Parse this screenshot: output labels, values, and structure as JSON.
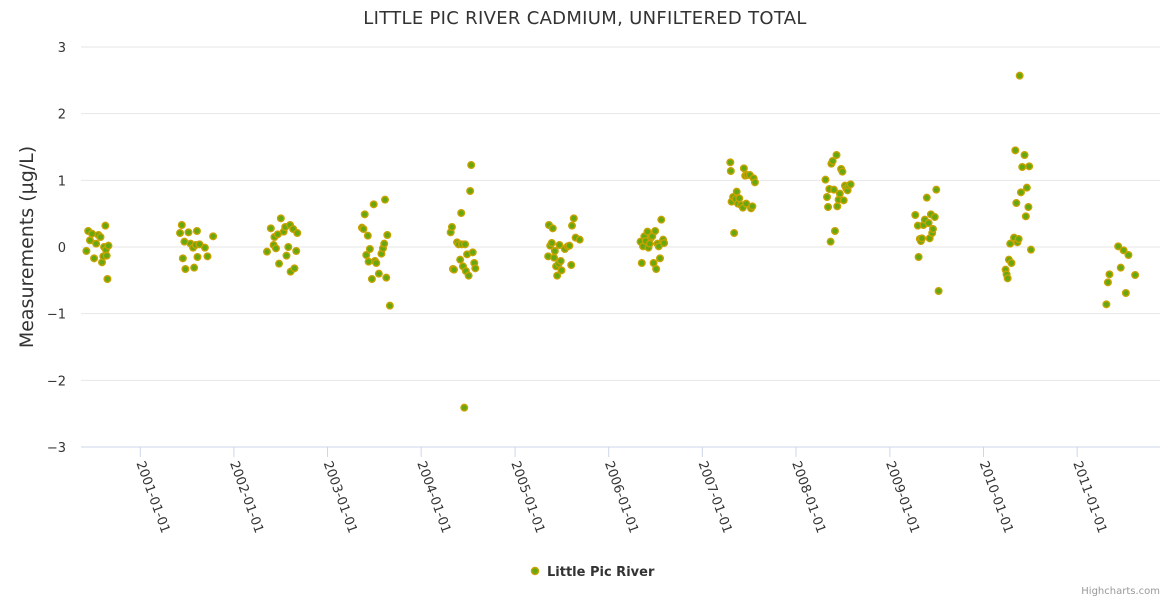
{
  "chart_data": {
    "type": "scatter",
    "title": "LITTLE PIC RIVER CADMIUM, UNFILTERED TOTAL",
    "xlabel": "",
    "ylabel": "Measurements (µg/L)",
    "ylim": [
      -3,
      3
    ],
    "yticks": [
      "−3",
      "−2",
      "−1",
      "0",
      "1",
      "2",
      "3"
    ],
    "xlim": [
      "2000-05-15",
      "2011-11-20"
    ],
    "xticks": [
      "2001-01-01",
      "2002-01-01",
      "2003-01-01",
      "2004-01-01",
      "2005-01-01",
      "2006-01-01",
      "2007-01-01",
      "2008-01-01",
      "2009-01-01",
      "2010-01-01",
      "2011-01-01"
    ],
    "grid": true,
    "legend_position": "bottom-center",
    "colors": {
      "marker_fill": "#66a80f",
      "marker_stroke": "#c8a200",
      "grid": "#e6e6e6",
      "axis": "#ccd6eb"
    },
    "series": [
      {
        "name": "Little Pic River",
        "points": [
          [
            "2000-06-05",
            -0.06
          ],
          [
            "2000-06-12",
            0.24
          ],
          [
            "2000-06-19",
            0.1
          ],
          [
            "2000-06-27",
            0.2
          ],
          [
            "2000-07-05",
            -0.17
          ],
          [
            "2000-07-13",
            0.05
          ],
          [
            "2000-07-22",
            0.18
          ],
          [
            "2000-07-30",
            0.15
          ],
          [
            "2000-08-05",
            -0.23
          ],
          [
            "2000-08-10",
            -0.14
          ],
          [
            "2000-08-13",
            0.0
          ],
          [
            "2000-08-18",
            0.32
          ],
          [
            "2000-08-20",
            -0.04
          ],
          [
            "2000-08-23",
            -0.13
          ],
          [
            "2000-08-26",
            -0.48
          ],
          [
            "2000-08-30",
            0.02
          ],
          [
            "2001-06-05",
            0.21
          ],
          [
            "2001-06-12",
            0.33
          ],
          [
            "2001-06-16",
            -0.17
          ],
          [
            "2001-06-22",
            0.08
          ],
          [
            "2001-06-26",
            -0.33
          ],
          [
            "2001-07-08",
            0.22
          ],
          [
            "2001-07-16",
            0.05
          ],
          [
            "2001-07-26",
            -0.01
          ],
          [
            "2001-07-30",
            -0.31
          ],
          [
            "2001-08-05",
            0.03
          ],
          [
            "2001-08-10",
            0.24
          ],
          [
            "2001-08-12",
            -0.15
          ],
          [
            "2001-08-20",
            0.04
          ],
          [
            "2001-09-10",
            -0.01
          ],
          [
            "2001-09-20",
            -0.14
          ],
          [
            "2001-10-12",
            0.16
          ],
          [
            "2002-05-10",
            -0.07
          ],
          [
            "2002-05-25",
            0.28
          ],
          [
            "2002-06-05",
            0.03
          ],
          [
            "2002-06-08",
            0.15
          ],
          [
            "2002-06-14",
            -0.02
          ],
          [
            "2002-06-21",
            0.19
          ],
          [
            "2002-06-26",
            -0.25
          ],
          [
            "2002-07-03",
            0.43
          ],
          [
            "2002-07-14",
            0.23
          ],
          [
            "2002-07-20",
            0.3
          ],
          [
            "2002-07-25",
            -0.13
          ],
          [
            "2002-08-01",
            0.0
          ],
          [
            "2002-08-08",
            0.33
          ],
          [
            "2002-08-10",
            -0.37
          ],
          [
            "2002-08-20",
            0.27
          ],
          [
            "2002-08-25",
            -0.32
          ],
          [
            "2002-09-01",
            -0.06
          ],
          [
            "2002-09-05",
            0.21
          ],
          [
            "2003-05-15",
            0.29
          ],
          [
            "2003-05-21",
            0.27
          ],
          [
            "2003-05-26",
            0.49
          ],
          [
            "2003-06-01",
            -0.12
          ],
          [
            "2003-06-07",
            0.17
          ],
          [
            "2003-06-10",
            -0.22
          ],
          [
            "2003-06-15",
            -0.03
          ],
          [
            "2003-06-23",
            -0.48
          ],
          [
            "2003-06-30",
            0.64
          ],
          [
            "2003-07-05",
            -0.21
          ],
          [
            "2003-07-10",
            -0.24
          ],
          [
            "2003-07-20",
            -0.4
          ],
          [
            "2003-07-30",
            -0.1
          ],
          [
            "2003-08-05",
            -0.02
          ],
          [
            "2003-08-10",
            0.05
          ],
          [
            "2003-08-13",
            0.71
          ],
          [
            "2003-08-18",
            -0.46
          ],
          [
            "2003-08-22",
            0.18
          ],
          [
            "2003-09-01",
            -0.88
          ],
          [
            "2004-04-25",
            0.22
          ],
          [
            "2004-04-30",
            0.3
          ],
          [
            "2004-05-04",
            -0.33
          ],
          [
            "2004-05-08",
            -0.34
          ],
          [
            "2004-05-20",
            0.07
          ],
          [
            "2004-05-26",
            0.04
          ],
          [
            "2004-06-01",
            -0.19
          ],
          [
            "2004-06-05",
            0.51
          ],
          [
            "2004-06-08",
            0.04
          ],
          [
            "2004-06-12",
            -0.29
          ],
          [
            "2004-06-17",
            -2.41
          ],
          [
            "2004-06-20",
            0.04
          ],
          [
            "2004-06-23",
            -0.36
          ],
          [
            "2004-06-28",
            -0.11
          ],
          [
            "2004-07-04",
            -0.43
          ],
          [
            "2004-07-10",
            0.84
          ],
          [
            "2004-07-14",
            1.23
          ],
          [
            "2004-07-20",
            -0.08
          ],
          [
            "2004-07-26",
            -0.24
          ],
          [
            "2004-07-30",
            -0.32
          ],
          [
            "2005-05-10",
            -0.14
          ],
          [
            "2005-05-13",
            0.33
          ],
          [
            "2005-05-18",
            0.02
          ],
          [
            "2005-05-24",
            0.06
          ],
          [
            "2005-05-28",
            0.28
          ],
          [
            "2005-06-02",
            -0.16
          ],
          [
            "2005-06-05",
            -0.06
          ],
          [
            "2005-06-10",
            -0.29
          ],
          [
            "2005-06-14",
            -0.43
          ],
          [
            "2005-06-20",
            -0.25
          ],
          [
            "2005-06-23",
            0.03
          ],
          [
            "2005-06-28",
            -0.21
          ],
          [
            "2005-07-01",
            -0.35
          ],
          [
            "2005-07-14",
            -0.03
          ],
          [
            "2005-07-25",
            0.01
          ],
          [
            "2005-08-01",
            0.02
          ],
          [
            "2005-08-08",
            -0.27
          ],
          [
            "2005-08-11",
            0.32
          ],
          [
            "2005-08-18",
            0.43
          ],
          [
            "2005-08-25",
            0.14
          ],
          [
            "2005-09-10",
            0.11
          ],
          [
            "2006-05-05",
            0.08
          ],
          [
            "2006-05-10",
            -0.24
          ],
          [
            "2006-05-15",
            0.01
          ],
          [
            "2006-05-20",
            0.16
          ],
          [
            "2006-05-25",
            0.09
          ],
          [
            "2006-06-01",
            0.23
          ],
          [
            "2006-06-05",
            -0.01
          ],
          [
            "2006-06-10",
            0.05
          ],
          [
            "2006-06-15",
            0.14
          ],
          [
            "2006-06-20",
            0.16
          ],
          [
            "2006-06-25",
            -0.24
          ],
          [
            "2006-07-01",
            0.24
          ],
          [
            "2006-07-05",
            -0.33
          ],
          [
            "2006-07-10",
            0.05
          ],
          [
            "2006-07-15",
            0.01
          ],
          [
            "2006-07-20",
            -0.17
          ],
          [
            "2006-07-25",
            0.41
          ],
          [
            "2006-08-01",
            0.11
          ],
          [
            "2006-08-05",
            0.06
          ],
          [
            "2007-04-20",
            1.27
          ],
          [
            "2007-04-22",
            1.14
          ],
          [
            "2007-04-25",
            0.68
          ],
          [
            "2007-05-01",
            0.75
          ],
          [
            "2007-05-05",
            0.21
          ],
          [
            "2007-05-10",
            0.72
          ],
          [
            "2007-05-15",
            0.83
          ],
          [
            "2007-05-20",
            0.65
          ],
          [
            "2007-05-25",
            0.73
          ],
          [
            "2007-06-01",
            0.63
          ],
          [
            "2007-06-08",
            0.59
          ],
          [
            "2007-06-12",
            1.18
          ],
          [
            "2007-06-17",
            1.07
          ],
          [
            "2007-06-21",
            0.65
          ],
          [
            "2007-06-25",
            1.08
          ],
          [
            "2007-07-05",
            1.08
          ],
          [
            "2007-07-10",
            0.58
          ],
          [
            "2007-07-15",
            0.61
          ],
          [
            "2007-07-20",
            1.03
          ],
          [
            "2007-07-25",
            0.97
          ],
          [
            "2008-04-25",
            1.01
          ],
          [
            "2008-05-01",
            0.75
          ],
          [
            "2008-05-05",
            0.6
          ],
          [
            "2008-05-10",
            0.87
          ],
          [
            "2008-05-15",
            0.08
          ],
          [
            "2008-05-18",
            1.25
          ],
          [
            "2008-05-23",
            1.29
          ],
          [
            "2008-05-28",
            0.86
          ],
          [
            "2008-06-01",
            0.24
          ],
          [
            "2008-06-07",
            1.38
          ],
          [
            "2008-06-10",
            0.61
          ],
          [
            "2008-06-15",
            0.71
          ],
          [
            "2008-06-20",
            0.8
          ],
          [
            "2008-06-25",
            1.17
          ],
          [
            "2008-06-30",
            1.13
          ],
          [
            "2008-07-05",
            0.7
          ],
          [
            "2008-07-10",
            0.92
          ],
          [
            "2008-07-15",
            0.88
          ],
          [
            "2008-07-20",
            0.85
          ],
          [
            "2008-07-25",
            0.92
          ],
          [
            "2008-08-01",
            0.94
          ],
          [
            "2009-04-10",
            0.48
          ],
          [
            "2009-04-20",
            0.32
          ],
          [
            "2009-04-23",
            -0.15
          ],
          [
            "2009-04-28",
            0.12
          ],
          [
            "2009-05-02",
            0.09
          ],
          [
            "2009-05-06",
            0.13
          ],
          [
            "2009-05-12",
            0.33
          ],
          [
            "2009-05-17",
            0.41
          ],
          [
            "2009-05-25",
            0.74
          ],
          [
            "2009-06-01",
            0.36
          ],
          [
            "2009-06-05",
            0.13
          ],
          [
            "2009-06-10",
            0.49
          ],
          [
            "2009-06-15",
            0.21
          ],
          [
            "2009-06-18",
            0.27
          ],
          [
            "2009-06-25",
            0.45
          ],
          [
            "2009-07-01",
            0.86
          ],
          [
            "2009-07-10",
            -0.66
          ],
          [
            "2010-03-28",
            -0.34
          ],
          [
            "2010-04-01",
            -0.41
          ],
          [
            "2010-04-05",
            -0.47
          ],
          [
            "2010-04-10",
            -0.19
          ],
          [
            "2010-04-15",
            0.05
          ],
          [
            "2010-04-20",
            -0.24
          ],
          [
            "2010-04-30",
            0.14
          ],
          [
            "2010-05-05",
            1.45
          ],
          [
            "2010-05-09",
            0.66
          ],
          [
            "2010-05-13",
            0.07
          ],
          [
            "2010-05-18",
            0.12
          ],
          [
            "2010-05-22",
            2.57
          ],
          [
            "2010-05-27",
            0.82
          ],
          [
            "2010-06-01",
            1.2
          ],
          [
            "2010-06-10",
            1.38
          ],
          [
            "2010-06-15",
            0.46
          ],
          [
            "2010-06-19",
            0.89
          ],
          [
            "2010-06-25",
            0.6
          ],
          [
            "2010-06-28",
            1.21
          ],
          [
            "2010-07-05",
            -0.04
          ],
          [
            "2011-04-25",
            -0.86
          ],
          [
            "2011-05-01",
            -0.53
          ],
          [
            "2011-05-07",
            -0.41
          ],
          [
            "2011-06-10",
            0.01
          ],
          [
            "2011-06-20",
            -0.31
          ],
          [
            "2011-07-01",
            -0.05
          ],
          [
            "2011-07-10",
            -0.69
          ],
          [
            "2011-07-20",
            -0.12
          ],
          [
            "2011-08-15",
            -0.42
          ]
        ]
      }
    ]
  },
  "credit": "Highcharts.com"
}
